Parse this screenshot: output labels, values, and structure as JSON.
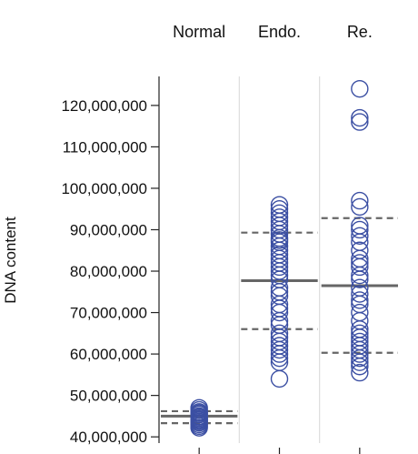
{
  "chart_data": {
    "type": "scatter",
    "title": "",
    "xlabel": "",
    "ylabel": "DNA content",
    "ylim": [
      38500000,
      127000000
    ],
    "yticks": [
      40000000,
      50000000,
      60000000,
      70000000,
      80000000,
      90000000,
      100000000,
      110000000,
      120000000
    ],
    "ytick_labels": [
      "40,000,000",
      "50,000,000",
      "60,000,000",
      "70,000,000",
      "80,000,000",
      "90,000,000",
      "100,000,000",
      "110,000,000",
      "120,000,000"
    ],
    "categories": [
      "Normal",
      "Endo.",
      "Re."
    ],
    "grid": false,
    "series": [
      {
        "category": "Normal",
        "points": [
          47000000,
          46500000,
          46000000,
          45700000,
          45400000,
          45000000,
          44800000,
          44500000,
          44200000,
          44000000,
          43700000,
          43400000,
          43000000,
          42600000,
          42200000
        ],
        "median": 45000000,
        "lower": 43300000,
        "upper": 46200000
      },
      {
        "category": "Endo.",
        "points": [
          96000000,
          95000000,
          94000000,
          93000000,
          92000000,
          91000000,
          90000000,
          89000000,
          88000000,
          87500000,
          87000000,
          86000000,
          85000000,
          84000000,
          83000000,
          82000000,
          81000000,
          80000000,
          79000000,
          78000000,
          76000000,
          75000000,
          74000000,
          72000000,
          71000000,
          70000000,
          68000000,
          67000000,
          65000000,
          64000000,
          63000000,
          62000000,
          61000000,
          60000000,
          59000000,
          58000000,
          54000000
        ],
        "median": 77700000,
        "lower": 66000000,
        "upper": 89300000
      },
      {
        "category": "Re.",
        "points": [
          124000000,
          117000000,
          116000000,
          97000000,
          95500000,
          91000000,
          90000000,
          88500000,
          87000000,
          85000000,
          83000000,
          82000000,
          81000000,
          79000000,
          78000000,
          76000000,
          74500000,
          73000000,
          72000000,
          70000000,
          68000000,
          66000000,
          65000000,
          64000000,
          63000000,
          62000000,
          61000000,
          60000000,
          59000000,
          58000000,
          57000000,
          55500000
        ],
        "median": 76500000,
        "lower": 60300000,
        "upper": 92800000
      }
    ]
  }
}
